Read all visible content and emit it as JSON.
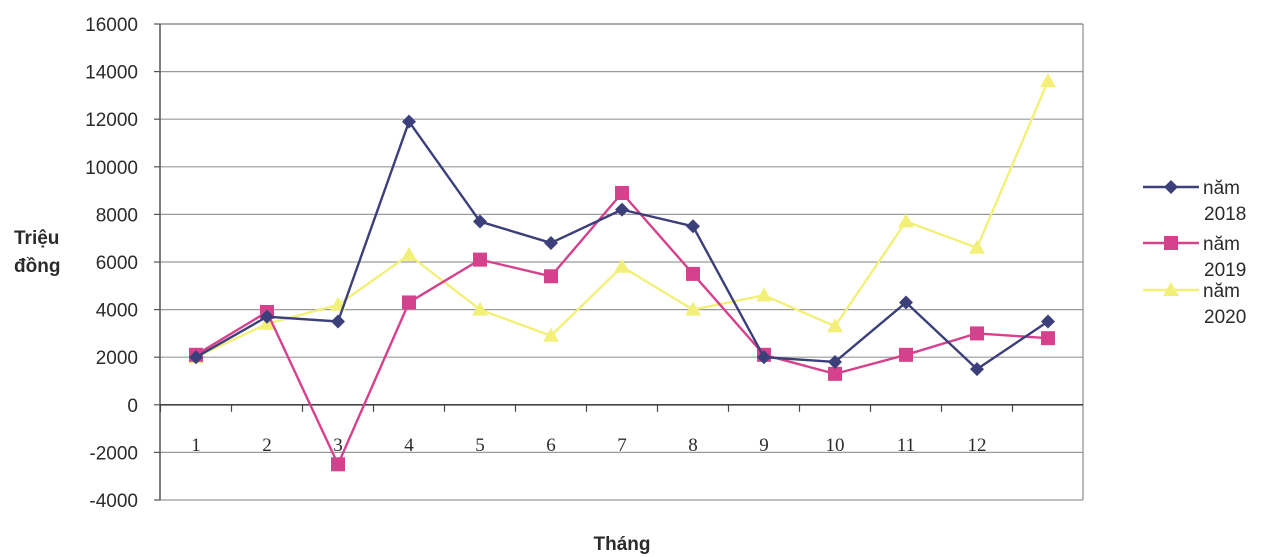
{
  "chart_data": {
    "type": "line",
    "title": "",
    "xlabel": "Tháng",
    "ylabel_lines": [
      "Triệu",
      "đồng"
    ],
    "ylim": [
      -4000,
      16000
    ],
    "yticks": [
      -4000,
      -2000,
      0,
      2000,
      4000,
      6000,
      8000,
      10000,
      12000,
      14000,
      16000
    ],
    "ytick_labels": [
      "-4000",
      "-2000",
      "0",
      "2000",
      "4000",
      "6000",
      "8000",
      "10000",
      "12000",
      "14000",
      "16000"
    ],
    "categories": [
      "1",
      "2",
      "3",
      "4",
      "5",
      "6",
      "7",
      "8",
      "9",
      "10",
      "11",
      "12",
      ""
    ],
    "grid": true,
    "legend_position": "right",
    "series": [
      {
        "name": "năm 2018",
        "legend_lines": [
          "năm",
          "2018"
        ],
        "color": "#3b3f7a",
        "marker": "diamond",
        "values": [
          2000,
          3700,
          3500,
          11900,
          7700,
          6800,
          8200,
          7500,
          2000,
          1800,
          4300,
          1500,
          3500
        ]
      },
      {
        "name": "năm 2019",
        "legend_lines": [
          "năm",
          "2019"
        ],
        "color": "#d6418d",
        "marker": "square",
        "values": [
          2100,
          3900,
          -2500,
          4300,
          6100,
          5400,
          8900,
          5500,
          2100,
          1300,
          2100,
          3000,
          2800
        ]
      },
      {
        "name": "năm 2020",
        "legend_lines": [
          "năm",
          "2020"
        ],
        "color": "#f3f07a",
        "marker": "triangle",
        "values": [
          2000,
          3400,
          4200,
          6300,
          4000,
          2900,
          5800,
          4000,
          4600,
          3300,
          7700,
          6600,
          13600
        ]
      }
    ]
  }
}
